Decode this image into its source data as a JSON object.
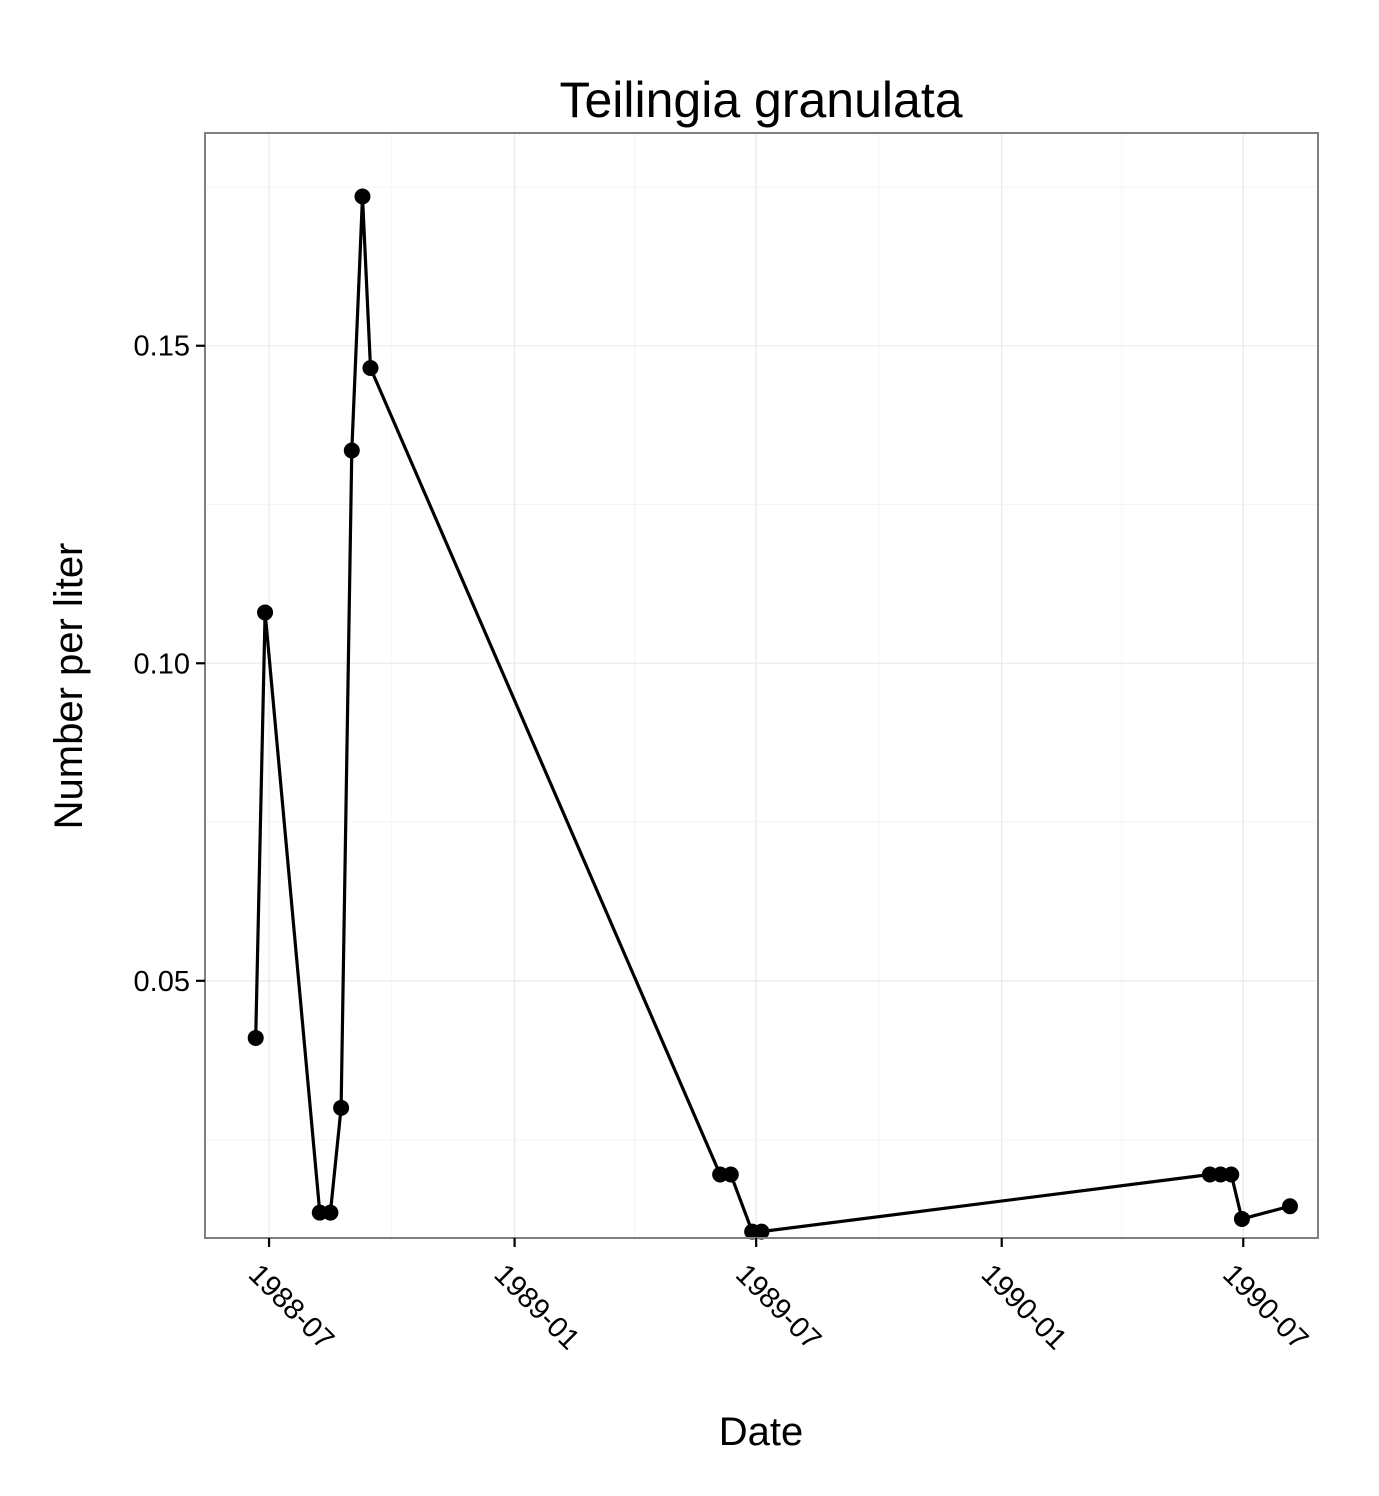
{
  "chart_data": {
    "type": "line",
    "title": "Teilingia granulata",
    "xlabel": "Date",
    "ylabel": "Number per liter",
    "x_type": "date",
    "xlim": [
      "1988-05-14",
      "1990-08-26"
    ],
    "ylim": [
      0.0095,
      0.1835
    ],
    "x_ticks": [
      {
        "value": "1988-07-01",
        "label": "1988-07"
      },
      {
        "value": "1989-01-01",
        "label": "1989-01"
      },
      {
        "value": "1989-07-01",
        "label": "1989-07"
      },
      {
        "value": "1990-01-01",
        "label": "1990-01"
      },
      {
        "value": "1990-07-01",
        "label": "1990-07"
      }
    ],
    "x_minor_ticks": [
      "1988-10-01",
      "1989-04-01",
      "1989-10-01",
      "1990-04-01"
    ],
    "y_ticks": [
      {
        "value": 0.05,
        "label": "0.05"
      },
      {
        "value": 0.1,
        "label": "0.10"
      },
      {
        "value": 0.15,
        "label": "0.15"
      }
    ],
    "y_minor_ticks": [
      0.025,
      0.075,
      0.125,
      0.175
    ],
    "grid": true,
    "series": [
      {
        "color": "#000000",
        "x": [
          "1988-06-21",
          "1988-06-28",
          "1988-08-08",
          "1988-08-16",
          "1988-08-24",
          "1988-09-01",
          "1988-09-09",
          "1988-09-15",
          "1989-06-04",
          "1989-06-12",
          "1989-06-28",
          "1989-07-05",
          "1990-06-06",
          "1990-06-14",
          "1990-06-22",
          "1990-06-30",
          "1990-08-05"
        ],
        "y": [
          0.041,
          0.108,
          0.0135,
          0.0135,
          0.03,
          0.1335,
          0.1735,
          0.1465,
          0.0195,
          0.0195,
          0.0105,
          0.0105,
          0.0195,
          0.0195,
          0.0195,
          0.0125,
          0.0145
        ]
      }
    ]
  }
}
